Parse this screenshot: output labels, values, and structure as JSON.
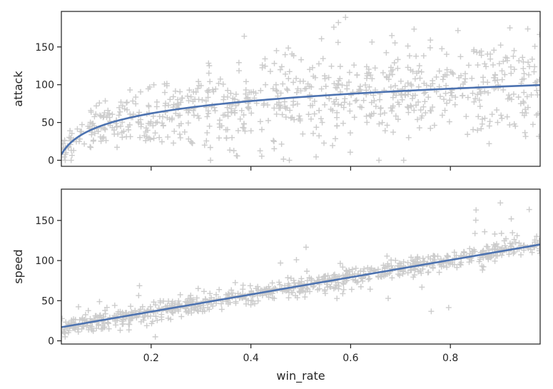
{
  "chart_data": [
    {
      "type": "scatter",
      "panel": "top",
      "xlabel": "",
      "ylabel": "attack",
      "xlim": [
        0.02,
        0.98
      ],
      "ylim": [
        -8,
        197
      ],
      "yticks": [
        0,
        50,
        100,
        150
      ],
      "show_x_ticklabels": false,
      "grid": false,
      "marker": "+",
      "marker_color": "#cccccc",
      "line_color": "#4c72b0",
      "fit": {
        "kind": "logarithmic",
        "x": [
          0.02,
          0.03,
          0.05,
          0.08,
          0.1,
          0.15,
          0.2,
          0.3,
          0.4,
          0.5,
          0.6,
          0.7,
          0.8,
          0.9,
          0.98
        ],
        "y": [
          7,
          18,
          31,
          43,
          48,
          56,
          62,
          71,
          77,
          83,
          88,
          92,
          95,
          98,
          100
        ]
      },
      "points_summary": {
        "count": 800,
        "x_range": [
          0.02,
          0.98
        ],
        "y_range": [
          0,
          190
        ],
        "trend": "y ≈ 100 + 23.6·ln(x) with wide spread (sd≈25)"
      }
    },
    {
      "type": "scatter",
      "panel": "bottom",
      "xlabel": "win_rate",
      "ylabel": "speed",
      "xlim": [
        0.02,
        0.98
      ],
      "ylim": [
        -4,
        189
      ],
      "xticks": [
        0.2,
        0.4,
        0.6,
        0.8
      ],
      "yticks": [
        0,
        50,
        100,
        150
      ],
      "grid": false,
      "marker": "+",
      "marker_color": "#cccccc",
      "line_color": "#4c72b0",
      "fit": {
        "kind": "linear",
        "x": [
          0.02,
          0.98
        ],
        "y": [
          17,
          120
        ]
      },
      "points_summary": {
        "count": 800,
        "x_range": [
          0.02,
          0.98
        ],
        "y_range": [
          5,
          180
        ],
        "trend": "y ≈ 15 + 107·x with tight spread (sd≈6), a few outliers"
      }
    }
  ]
}
